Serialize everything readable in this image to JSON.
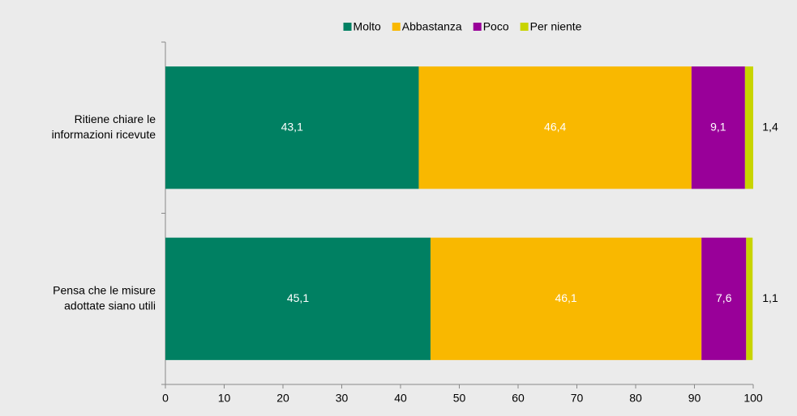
{
  "chart_data": {
    "type": "stacked_barh",
    "categories": [
      [
        "Ritiene chiare le",
        "informazioni ricevute"
      ],
      [
        "Pensa che le misure",
        "adottate siano utili"
      ]
    ],
    "series": [
      {
        "name": "Molto",
        "color": "#008062",
        "values": [
          43.1,
          45.1
        ],
        "value_labels": [
          "43,1",
          "45,1"
        ]
      },
      {
        "name": "Abbastanza",
        "color": "#f9b800",
        "values": [
          46.4,
          46.1
        ],
        "value_labels": [
          "46,4",
          "46,1"
        ]
      },
      {
        "name": "Poco",
        "color": "#990099",
        "values": [
          9.1,
          7.6
        ],
        "value_labels": [
          "9,1",
          "7,6"
        ]
      },
      {
        "name": "Per niente",
        "color": "#c8d400",
        "values": [
          1.4,
          1.1
        ],
        "value_labels": [
          "1,4",
          "1,1"
        ]
      }
    ],
    "xlim": [
      0,
      100
    ],
    "xticks": [
      0,
      10,
      20,
      30,
      40,
      50,
      60,
      70,
      80,
      90,
      100
    ],
    "legend": "top",
    "grid": false
  }
}
